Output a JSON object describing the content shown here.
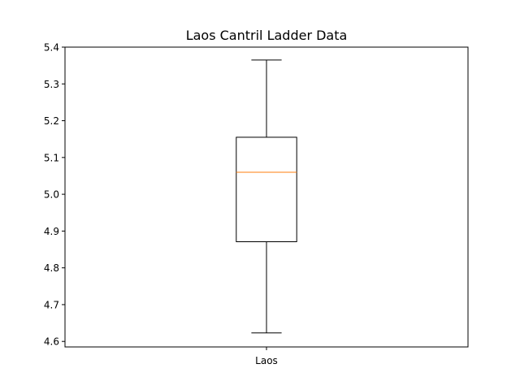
{
  "chart_data": {
    "type": "box",
    "title": "Laos Cantril Ladder Data",
    "xlabel": "",
    "ylabel": "",
    "categories": [
      "Laos"
    ],
    "boxes": [
      {
        "category": "Laos",
        "whisker_low": 4.623,
        "q1": 4.871,
        "median": 5.06,
        "q3": 5.155,
        "whisker_high": 5.365
      }
    ],
    "ylim": [
      4.585,
      5.4
    ],
    "yticks": [
      "4.6",
      "4.7",
      "4.8",
      "4.9",
      "5.0",
      "5.1",
      "5.2",
      "5.3",
      "5.4"
    ],
    "grid": false,
    "median_color": "#ff7f0e",
    "box_color": "#000000"
  }
}
